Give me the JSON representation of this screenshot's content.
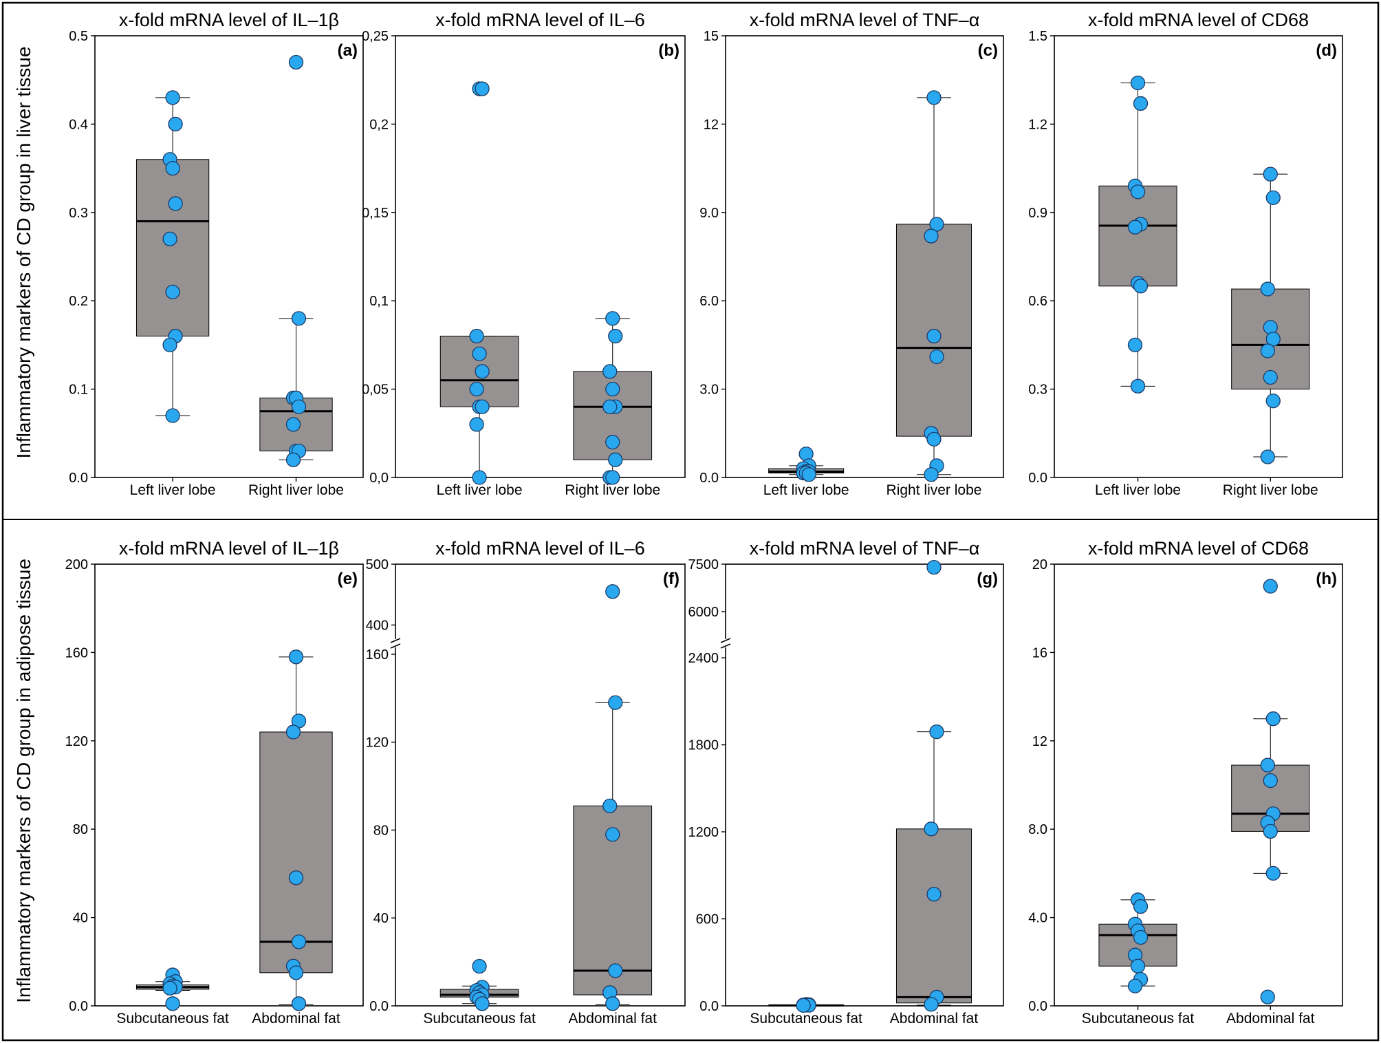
{
  "figure": {
    "row_labels": [
      "Inflammatory  markers  of  CD  group  in  liver  tissue",
      "Inflammatory  markers  of  CD  group  in  adipose  tissue"
    ]
  },
  "colors": {
    "point_fill": "#29a8f0",
    "point_stroke": "#1b3a66",
    "box_fill": "#979292",
    "line": "#000000"
  },
  "chart_data": [
    {
      "type": "box",
      "panel_label": "(a)",
      "title": "x-fold  mRNA  level  of  IL–1β",
      "ylim": [
        0,
        0.5
      ],
      "y_ticks": [
        {
          "value": 0,
          "label": "0.0"
        },
        {
          "value": 0.1,
          "label": "0.1"
        },
        {
          "value": 0.2,
          "label": "0.2"
        },
        {
          "value": 0.3,
          "label": "0.3"
        },
        {
          "value": 0.4,
          "label": "0.4"
        },
        {
          "value": 0.5,
          "label": "0.5"
        }
      ],
      "categories": [
        "Left liver lobe",
        "Right liver lobe"
      ],
      "boxes": [
        {
          "q1": 0.16,
          "median": 0.29,
          "q3": 0.36,
          "whisker_low": 0.07,
          "whisker_high": 0.43
        },
        {
          "q1": 0.03,
          "median": 0.075,
          "q3": 0.09,
          "whisker_low": 0.02,
          "whisker_high": 0.18
        }
      ],
      "points": [
        [
          0.43,
          0.4,
          0.36,
          0.35,
          0.31,
          0.27,
          0.21,
          0.16,
          0.15,
          0.07
        ],
        [
          0.47,
          0.18,
          0.09,
          0.09,
          0.08,
          0.06,
          0.03,
          0.03,
          0.02
        ]
      ]
    },
    {
      "type": "box",
      "panel_label": "(b)",
      "title": "x-fold  mRNA  level  of  IL–6",
      "ylim": [
        0,
        0.25
      ],
      "y_ticks": [
        {
          "value": 0,
          "label": "0,0"
        },
        {
          "value": 0.05,
          "label": "0,05"
        },
        {
          "value": 0.1,
          "label": "0,1"
        },
        {
          "value": 0.15,
          "label": "0,15"
        },
        {
          "value": 0.2,
          "label": "0,2"
        },
        {
          "value": 0.25,
          "label": "0,25"
        }
      ],
      "categories": [
        "Left liver lobe",
        "Right liver lobe"
      ],
      "boxes": [
        {
          "q1": 0.04,
          "median": 0.055,
          "q3": 0.08,
          "whisker_low": 0.0,
          "whisker_high": 0.08
        },
        {
          "q1": 0.01,
          "median": 0.04,
          "q3": 0.06,
          "whisker_low": 0.0,
          "whisker_high": 0.09
        }
      ],
      "points": [
        [
          0.22,
          0.22,
          0.08,
          0.07,
          0.06,
          0.05,
          0.04,
          0.04,
          0.03,
          0.0
        ],
        [
          0.09,
          0.08,
          0.06,
          0.05,
          0.04,
          0.04,
          0.02,
          0.01,
          0.0,
          0.0
        ]
      ]
    },
    {
      "type": "box",
      "panel_label": "(c)",
      "title": "x-fold  mRNA  level  of  TNF–α",
      "ylim": [
        0,
        15
      ],
      "y_ticks": [
        {
          "value": 0,
          "label": "0.0"
        },
        {
          "value": 3,
          "label": "3.0"
        },
        {
          "value": 6,
          "label": "6.0"
        },
        {
          "value": 9,
          "label": "9.0"
        },
        {
          "value": 12,
          "label": "12"
        },
        {
          "value": 15,
          "label": "15"
        }
      ],
      "categories": [
        "Left liver lobe",
        "Right liver lobe"
      ],
      "boxes": [
        {
          "q1": 0.15,
          "median": 0.2,
          "q3": 0.3,
          "whisker_low": 0.1,
          "whisker_high": 0.4
        },
        {
          "q1": 1.4,
          "median": 4.4,
          "q3": 8.6,
          "whisker_low": 0.1,
          "whisker_high": 12.9
        }
      ],
      "points": [
        [
          0.8,
          0.4,
          0.3,
          0.2,
          0.2,
          0.15,
          0.15,
          0.1
        ],
        [
          12.9,
          8.6,
          8.2,
          4.8,
          4.1,
          1.5,
          1.3,
          0.4,
          0.1
        ]
      ]
    },
    {
      "type": "box",
      "panel_label": "(d)",
      "title": "x-fold  mRNA  level  of  CD68",
      "ylim": [
        0,
        1.5
      ],
      "y_ticks": [
        {
          "value": 0,
          "label": "0.0"
        },
        {
          "value": 0.3,
          "label": "0.3"
        },
        {
          "value": 0.6,
          "label": "0.6"
        },
        {
          "value": 0.9,
          "label": "0.9"
        },
        {
          "value": 1.2,
          "label": "1.2"
        },
        {
          "value": 1.5,
          "label": "1.5"
        }
      ],
      "categories": [
        "Left liver lobe",
        "Right liver lobe"
      ],
      "boxes": [
        {
          "q1": 0.65,
          "median": 0.855,
          "q3": 0.99,
          "whisker_low": 0.31,
          "whisker_high": 1.34
        },
        {
          "q1": 0.3,
          "median": 0.45,
          "q3": 0.64,
          "whisker_low": 0.07,
          "whisker_high": 1.03
        }
      ],
      "points": [
        [
          1.34,
          1.27,
          0.99,
          0.97,
          0.86,
          0.85,
          0.66,
          0.65,
          0.45,
          0.31
        ],
        [
          1.03,
          0.95,
          0.64,
          0.51,
          0.47,
          0.43,
          0.34,
          0.26,
          0.07
        ]
      ]
    },
    {
      "type": "box",
      "panel_label": "(e)",
      "title": "x-fold  mRNA  level  of  IL–1β",
      "ylim": [
        0,
        200
      ],
      "y_ticks": [
        {
          "value": 0,
          "label": "0.0"
        },
        {
          "value": 40,
          "label": "40"
        },
        {
          "value": 80,
          "label": "80"
        },
        {
          "value": 120,
          "label": "120"
        },
        {
          "value": 160,
          "label": "160"
        },
        {
          "value": 200,
          "label": "200"
        }
      ],
      "categories": [
        "Subcutaneous fat",
        "Abdominal fat"
      ],
      "boxes": [
        {
          "q1": 7.5,
          "median": 8.5,
          "q3": 9.5,
          "whisker_low": 7,
          "whisker_high": 11
        },
        {
          "q1": 15,
          "median": 29,
          "q3": 124,
          "whisker_low": 0.5,
          "whisker_high": 158
        }
      ],
      "points": [
        [
          14,
          11,
          10,
          9,
          8.5,
          8,
          1
        ],
        [
          158,
          129,
          124,
          58,
          29,
          18,
          15,
          1
        ]
      ]
    },
    {
      "type": "box",
      "panel_label": "(f)",
      "title": "x-fold  mRNA  level  of  IL–6",
      "y_break": {
        "lower_max": 165,
        "upper_min": 370,
        "upper_max": 500
      },
      "y_ticks": [
        {
          "value": 0,
          "label": "0.0"
        },
        {
          "value": 40,
          "label": "40"
        },
        {
          "value": 80,
          "label": "80"
        },
        {
          "value": 120,
          "label": "120"
        },
        {
          "value": 160,
          "label": "160"
        },
        {
          "value": 400,
          "label": "400"
        },
        {
          "value": 500,
          "label": "500"
        }
      ],
      "categories": [
        "Subcutaneous fat",
        "Abdominal fat"
      ],
      "boxes": [
        {
          "q1": 4,
          "median": 5,
          "q3": 7.5,
          "whisker_low": 1,
          "whisker_high": 9
        },
        {
          "q1": 5,
          "median": 16,
          "q3": 91,
          "whisker_low": 0.5,
          "whisker_high": 138
        }
      ],
      "points": [
        [
          18,
          8.5,
          7,
          6,
          5,
          4,
          3,
          1
        ],
        [
          455,
          138,
          91,
          78,
          16,
          6,
          1
        ]
      ]
    },
    {
      "type": "box",
      "panel_label": "(g)",
      "title": "x-fold  mRNA  level  of  TNF–α",
      "y_break": {
        "lower_max": 2500,
        "upper_min": 5000,
        "upper_max": 7500
      },
      "y_ticks": [
        {
          "value": 0,
          "label": "0.0"
        },
        {
          "value": 600,
          "label": "600"
        },
        {
          "value": 1200,
          "label": "1200"
        },
        {
          "value": 1800,
          "label": "1800"
        },
        {
          "value": 2400,
          "label": "2400"
        },
        {
          "value": 6000,
          "label": "6000"
        },
        {
          "value": 7500,
          "label": "7500"
        }
      ],
      "categories": [
        "Subcutaneous fat",
        "Abdominal fat"
      ],
      "boxes": [
        {
          "q1": 2,
          "median": 3,
          "q3": 4,
          "whisker_low": 1,
          "whisker_high": 6
        },
        {
          "q1": 20,
          "median": 60,
          "q3": 1220,
          "whisker_low": 5,
          "whisker_high": 1890
        }
      ],
      "points": [
        [
          10,
          8,
          6,
          5,
          4,
          3
        ],
        [
          7400,
          1890,
          1220,
          770,
          60,
          10
        ]
      ]
    },
    {
      "type": "box",
      "panel_label": "(h)",
      "title": "x-fold  mRNA  level  of  CD68",
      "ylim": [
        0,
        20
      ],
      "y_ticks": [
        {
          "value": 0,
          "label": "0.0"
        },
        {
          "value": 4,
          "label": "4.0"
        },
        {
          "value": 8,
          "label": "8.0"
        },
        {
          "value": 12,
          "label": "12"
        },
        {
          "value": 16,
          "label": "16"
        },
        {
          "value": 20,
          "label": "20"
        }
      ],
      "categories": [
        "Subcutaneous fat",
        "Abdominal fat"
      ],
      "boxes": [
        {
          "q1": 1.8,
          "median": 3.2,
          "q3": 3.7,
          "whisker_low": 0.9,
          "whisker_high": 4.8
        },
        {
          "q1": 7.9,
          "median": 8.7,
          "q3": 10.9,
          "whisker_low": 6.0,
          "whisker_high": 13.0
        }
      ],
      "points": [
        [
          4.8,
          4.5,
          3.7,
          3.4,
          3.1,
          2.3,
          1.8,
          1.2,
          0.9
        ],
        [
          19.0,
          13.0,
          10.9,
          10.2,
          8.7,
          8.3,
          7.9,
          6.0,
          0.4
        ]
      ]
    }
  ]
}
